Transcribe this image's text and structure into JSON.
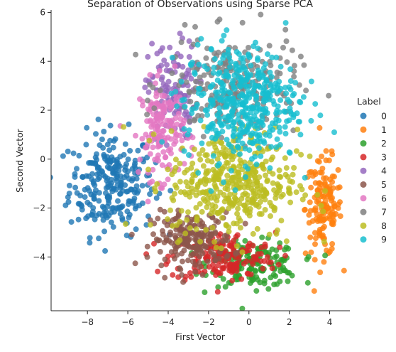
{
  "chart_data": {
    "type": "scatter",
    "title": "Separation of Observations using Sparse PCA",
    "xlabel": "First Vector",
    "ylabel": "Second Vector",
    "xlim": [
      -9.8,
      5.0
    ],
    "ylim": [
      -6.2,
      6.1
    ],
    "xticks": [
      -8,
      -6,
      -4,
      -2,
      0,
      2,
      4
    ],
    "yticks": [
      -4,
      -2,
      0,
      2,
      4,
      6
    ],
    "xtick_labels": [
      "−8",
      "−6",
      "−4",
      "−2",
      "0",
      "2",
      "4"
    ],
    "ytick_labels": [
      "−4",
      "−2",
      "0",
      "2",
      "4",
      "6"
    ],
    "grid": false,
    "legend": {
      "title": "Label",
      "placement": "right-outside"
    },
    "series": [
      {
        "name": "0",
        "color": "#1f77b4",
        "cluster": {
          "cx": -6.8,
          "cy": -1.0,
          "sx": 1.05,
          "sy": 1.05,
          "n": 260
        }
      },
      {
        "name": "1",
        "color": "#ff7f0e",
        "cluster": {
          "cx": 3.7,
          "cy": -2.0,
          "sx": 0.45,
          "sy": 1.0,
          "n": 150
        }
      },
      {
        "name": "2",
        "color": "#2ca02c",
        "cluster": {
          "cx": 0.3,
          "cy": -4.3,
          "sx": 1.1,
          "sy": 0.45,
          "n": 160
        }
      },
      {
        "name": "3",
        "color": "#d62728",
        "cluster": {
          "cx": -1.3,
          "cy": -4.0,
          "sx": 1.3,
          "sy": 0.5,
          "n": 180
        }
      },
      {
        "name": "4",
        "color": "#9467bd",
        "cluster": {
          "cx": -3.8,
          "cy": 2.8,
          "sx": 0.6,
          "sy": 1.0,
          "n": 120
        }
      },
      {
        "name": "5",
        "color": "#8c564b",
        "cluster": {
          "cx": -2.8,
          "cy": -3.3,
          "sx": 1.0,
          "sy": 0.55,
          "n": 200
        }
      },
      {
        "name": "6",
        "color": "#e377c2",
        "cluster": {
          "cx": -4.3,
          "cy": 1.2,
          "sx": 0.55,
          "sy": 1.0,
          "n": 160
        }
      },
      {
        "name": "7",
        "color": "#7f7f7f",
        "cluster": {
          "cx": -0.8,
          "cy": 3.0,
          "sx": 1.6,
          "sy": 1.0,
          "n": 220
        }
      },
      {
        "name": "8",
        "color": "#bcbd22",
        "cluster": {
          "cx": -0.8,
          "cy": -1.0,
          "sx": 1.6,
          "sy": 1.1,
          "n": 420
        }
      },
      {
        "name": "9",
        "color": "#17becf",
        "cluster": {
          "cx": -0.4,
          "cy": 2.3,
          "sx": 1.4,
          "sy": 1.2,
          "n": 420
        }
      }
    ]
  }
}
